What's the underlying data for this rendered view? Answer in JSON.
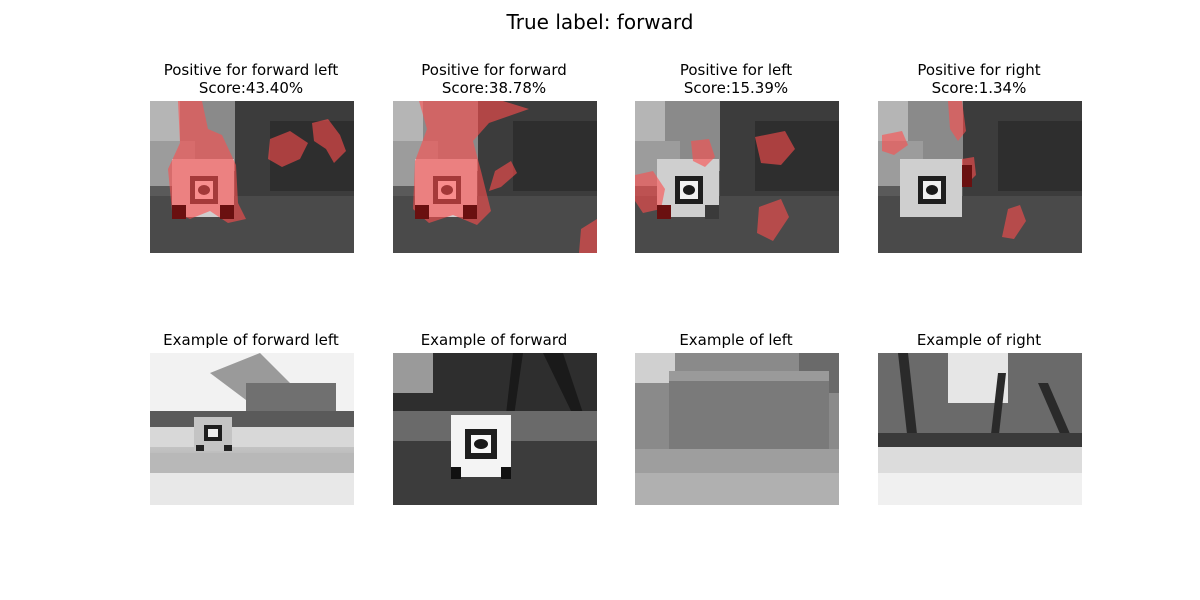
{
  "title": "True label: forward",
  "colors": {
    "mask": "#ff4d4d",
    "background": "#ffffff",
    "text": "#000000"
  },
  "top_row": [
    {
      "label_line": "Positive for forward left",
      "score_line": "Score:43.40%"
    },
    {
      "label_line": "Positive for forward",
      "score_line": "Score:38.78%"
    },
    {
      "label_line": "Positive for left",
      "score_line": "Score:15.39%"
    },
    {
      "label_line": "Positive for right",
      "score_line": "Score:1.34%"
    }
  ],
  "bottom_row": [
    {
      "label_line": "Example of forward left"
    },
    {
      "label_line": "Example of forward"
    },
    {
      "label_line": "Example of left"
    },
    {
      "label_line": "Example of right"
    }
  ]
}
